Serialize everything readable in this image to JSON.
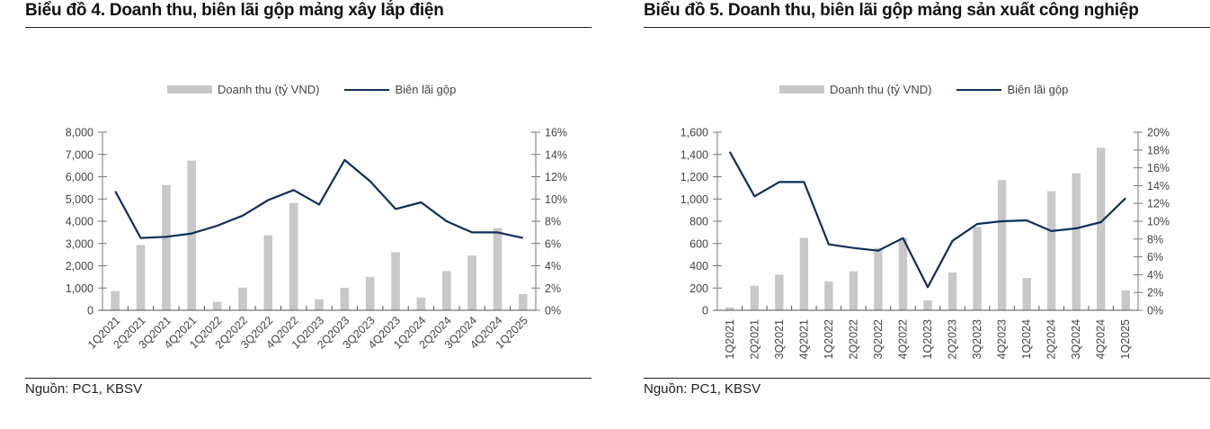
{
  "chart_data": [
    {
      "type": "bar",
      "title": "Biểu đồ 4. Doanh thu, biên lãi gộp mảng xây lắp điện",
      "source": "Nguồn: PC1, KBSV",
      "legend_position": "top-center",
      "categories": [
        "1Q2021",
        "2Q2021",
        "3Q2021",
        "4Q2021",
        "1Q2022",
        "2Q2022",
        "3Q2022",
        "4Q2022",
        "1Q2023",
        "2Q2023",
        "3Q2023",
        "4Q2023",
        "1Q2024",
        "2Q2024",
        "3Q2024",
        "4Q2024",
        "1Q2025"
      ],
      "series": [
        {
          "name": "Doanh thu (tỷ VND)",
          "type": "bar",
          "axis": "left",
          "color": "#c8c8c8",
          "values": [
            860,
            2930,
            5630,
            6720,
            380,
            1020,
            3370,
            4820,
            490,
            1010,
            1500,
            2610,
            570,
            1760,
            2460,
            3690,
            730
          ]
        },
        {
          "name": "Biên lãi gộp",
          "type": "line",
          "axis": "right",
          "color": "#0d2f5a",
          "values": [
            10.7,
            6.5,
            6.6,
            6.9,
            7.6,
            8.5,
            9.9,
            10.8,
            9.5,
            13.5,
            11.6,
            9.1,
            9.7,
            8.0,
            7.0,
            7.0,
            6.5
          ]
        }
      ],
      "ylim": [
        0,
        8000
      ],
      "yticks": [
        "0",
        "1,000",
        "2,000",
        "3,000",
        "4,000",
        "5,000",
        "6,000",
        "7,000",
        "8,000"
      ],
      "y2lim": [
        0,
        16
      ],
      "y2ticks": [
        "0%",
        "2%",
        "4%",
        "6%",
        "8%",
        "10%",
        "12%",
        "14%",
        "16%"
      ],
      "xlabel_rotation": "diagonal",
      "grid": false
    },
    {
      "type": "bar",
      "title": "Biểu đồ 5. Doanh thu, biên lãi gộp mảng sản xuất công nghiệp",
      "source": "Nguồn: PC1, KBSV",
      "legend_position": "top-center",
      "categories": [
        "1Q2021",
        "2Q2021",
        "3Q2021",
        "4Q2021",
        "1Q2022",
        "2Q2022",
        "3Q2022",
        "4Q2022",
        "1Q2023",
        "2Q2023",
        "3Q2023",
        "4Q2023",
        "1Q2024",
        "2Q2024",
        "3Q2024",
        "4Q2024",
        "1Q2025"
      ],
      "series": [
        {
          "name": "Doanh thu (tỷ VND)",
          "type": "bar",
          "axis": "left",
          "color": "#c8c8c8",
          "values": [
            25,
            220,
            320,
            650,
            260,
            350,
            560,
            650,
            90,
            340,
            750,
            1170,
            290,
            1070,
            1230,
            1460,
            180
          ]
        },
        {
          "name": "Biên lãi gộp",
          "type": "line",
          "axis": "right",
          "color": "#0d2f5a",
          "values": [
            17.8,
            12.8,
            14.4,
            14.4,
            7.4,
            7.0,
            6.7,
            8.1,
            2.6,
            7.8,
            9.7,
            10.0,
            10.1,
            8.9,
            9.2,
            9.9,
            12.6
          ]
        }
      ],
      "ylim": [
        0,
        1600
      ],
      "yticks": [
        "0",
        "200",
        "400",
        "600",
        "800",
        "1,000",
        "1,200",
        "1,400",
        "1,600"
      ],
      "y2lim": [
        0,
        20
      ],
      "y2ticks": [
        "0%",
        "2%",
        "4%",
        "6%",
        "8%",
        "10%",
        "12%",
        "14%",
        "16%",
        "18%",
        "20%"
      ],
      "xlabel_rotation": "vertical",
      "grid": false
    }
  ]
}
